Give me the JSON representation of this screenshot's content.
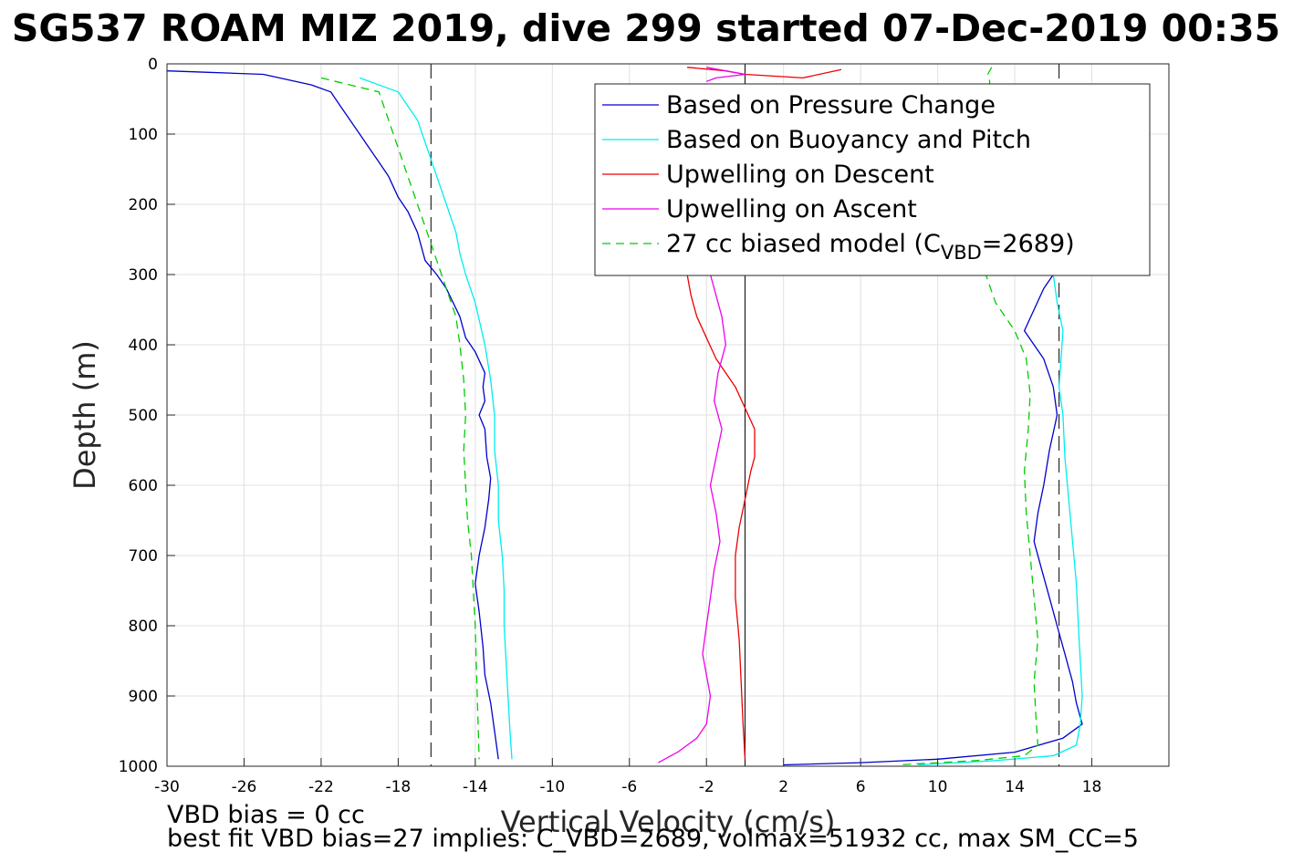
{
  "chart_data": {
    "type": "line",
    "title": "SG537 ROAM MIZ 2019, dive 299 started 07-Dec-2019 00:35",
    "xlabel": "Vertical Velocity (cm/s)",
    "ylabel": "Depth (m)",
    "xlim": [
      -30,
      22
    ],
    "ylim": [
      0,
      1000
    ],
    "y_reversed": true,
    "grid": true,
    "legend_position": "top-right",
    "x_ticks": [
      -30,
      -26,
      -22,
      -18,
      -14,
      -10,
      -6,
      -2,
      2,
      6,
      10,
      14,
      18
    ],
    "y_ticks": [
      0,
      100,
      200,
      300,
      400,
      500,
      600,
      700,
      800,
      900,
      1000
    ],
    "vertical_lines": [
      {
        "x": -16.3,
        "style": "dashed"
      },
      {
        "x": 0,
        "style": "solid"
      },
      {
        "x": 16.3,
        "style": "dashed"
      }
    ],
    "series": [
      {
        "name": "Based on Pressure Change",
        "color": "#0000cc",
        "style": "solid",
        "x": [
          -30,
          -28,
          -25,
          -22.5,
          -21.5,
          -21,
          -20.5,
          -20,
          -19.5,
          -19,
          -18.5,
          -18,
          -17.5,
          -17,
          -16.8,
          -16.6,
          -16,
          -15.5,
          -14.8,
          -14.5,
          -14,
          -13.5,
          -13.6,
          -13.5,
          -13.8,
          -13.5,
          -13.4,
          -13.2,
          -13.3,
          -13.5,
          -13.8,
          -14,
          -13.8,
          -13.6,
          -13.5,
          -13.2,
          -13.0,
          -12.8
        ],
        "y": [
          10,
          12,
          15,
          30,
          40,
          60,
          80,
          100,
          120,
          140,
          160,
          190,
          210,
          240,
          260,
          280,
          300,
          320,
          360,
          390,
          410,
          440,
          460,
          480,
          500,
          520,
          560,
          590,
          620,
          660,
          700,
          740,
          780,
          830,
          870,
          910,
          950,
          990
        ],
        "x2": [
          16,
          15.5,
          15,
          14.5,
          15,
          15.5,
          16,
          16.2,
          15.8,
          15.5,
          15.2,
          15,
          15.4,
          15.8,
          16.2,
          16.6,
          17,
          17.2,
          17.5,
          16.5,
          14,
          10,
          6,
          2
        ],
        "y2": [
          300,
          320,
          350,
          380,
          400,
          420,
          460,
          500,
          550,
          600,
          640,
          680,
          720,
          760,
          800,
          840,
          880,
          910,
          940,
          960,
          980,
          990,
          995,
          998
        ]
      },
      {
        "name": "Based on Buoyancy and Pitch",
        "color": "#00eeee",
        "style": "solid",
        "x": [
          -20,
          -18,
          -17.5,
          -17,
          -16.5,
          -16,
          -15.5,
          -15,
          -14.8,
          -14.5,
          -14,
          -13.5,
          -13.2,
          -13.0,
          -13.0,
          -12.8,
          -12.8,
          -12.6,
          -12.5,
          -12.5,
          -12.4,
          -12.3,
          -12.2,
          -12.1
        ],
        "y": [
          20,
          40,
          60,
          80,
          120,
          160,
          200,
          240,
          270,
          300,
          340,
          400,
          450,
          500,
          550,
          600,
          650,
          700,
          750,
          800,
          850,
          900,
          950,
          990
        ],
        "x2": [
          16,
          16.2,
          16.5,
          16.4,
          16.3,
          16.5,
          16.6,
          16.8,
          17,
          17.2,
          17.3,
          17.4,
          17.5,
          17.4,
          17.2,
          16,
          13,
          9
        ],
        "y2": [
          300,
          340,
          380,
          420,
          460,
          500,
          560,
          620,
          680,
          740,
          800,
          850,
          900,
          940,
          970,
          985,
          992,
          998
        ]
      },
      {
        "name": "Upwelling on Descent",
        "color": "#ee0000",
        "style": "solid",
        "x": [
          -3,
          -2.8,
          -2.5,
          -2,
          -1.5,
          -1,
          -0.5,
          0,
          0.5,
          0.5,
          0.3,
          0,
          -0.3,
          -0.5,
          -0.5,
          -0.3,
          -0.2,
          -0.1,
          0
        ],
        "y": [
          300,
          330,
          360,
          390,
          420,
          440,
          460,
          490,
          520,
          560,
          580,
          620,
          660,
          700,
          760,
          820,
          880,
          940,
          990
        ],
        "x2": [
          -3,
          -1,
          0,
          3,
          5
        ],
        "y2": [
          5,
          10,
          15,
          20,
          8
        ]
      },
      {
        "name": "Upwelling on Ascent",
        "color": "#ee00ee",
        "style": "solid",
        "x": [
          -1.8,
          -1.5,
          -1.2,
          -1.0,
          -1.4,
          -1.6,
          -1.2,
          -1.5,
          -1.8,
          -1.5,
          -1.3,
          -1.6,
          -1.8,
          -2.0,
          -2.2,
          -2.0,
          -1.8,
          -2.0,
          -2.5,
          -3.5,
          -4.5
        ],
        "y": [
          300,
          330,
          360,
          400,
          440,
          480,
          520,
          560,
          600,
          640,
          680,
          720,
          760,
          800,
          840,
          870,
          900,
          940,
          960,
          980,
          995
        ],
        "x2": [
          -2,
          -1,
          0,
          -1.5,
          -2
        ],
        "y2": [
          5,
          10,
          15,
          20,
          25
        ]
      },
      {
        "name": "27 cc biased model (C_VBD=2689)",
        "color": "#00cc00",
        "style": "dashed",
        "x": [
          -22,
          -19,
          -18.5,
          -18,
          -17.5,
          -17,
          -16.5,
          -16,
          -15.5,
          -15,
          -14.8,
          -14.6,
          -14.5,
          -14.6,
          -14.5,
          -14.4,
          -14.2,
          -14.1,
          -14.0,
          -13.9,
          -13.8
        ],
        "y": [
          20,
          40,
          80,
          120,
          160,
          200,
          240,
          280,
          320,
          360,
          400,
          450,
          500,
          550,
          600,
          650,
          700,
          750,
          800,
          900,
          990
        ],
        "x2": [
          12.8,
          12.6,
          12.7,
          12.5,
          13,
          14,
          14.6,
          14.8,
          14.7,
          14.5,
          14.6,
          14.8,
          15,
          15.2,
          15.0,
          15.1,
          15.2,
          14.5,
          12,
          8
        ],
        "y2": [
          5,
          15,
          25,
          300,
          340,
          380,
          420,
          470,
          520,
          580,
          640,
          700,
          760,
          820,
          880,
          930,
          970,
          985,
          992,
          998
        ]
      }
    ],
    "annotations": [
      "VBD bias = 0 cc",
      "best fit VBD bias=27 implies: C_VBD=2689, volmax=51932 cc, max SM_CC=5"
    ]
  }
}
